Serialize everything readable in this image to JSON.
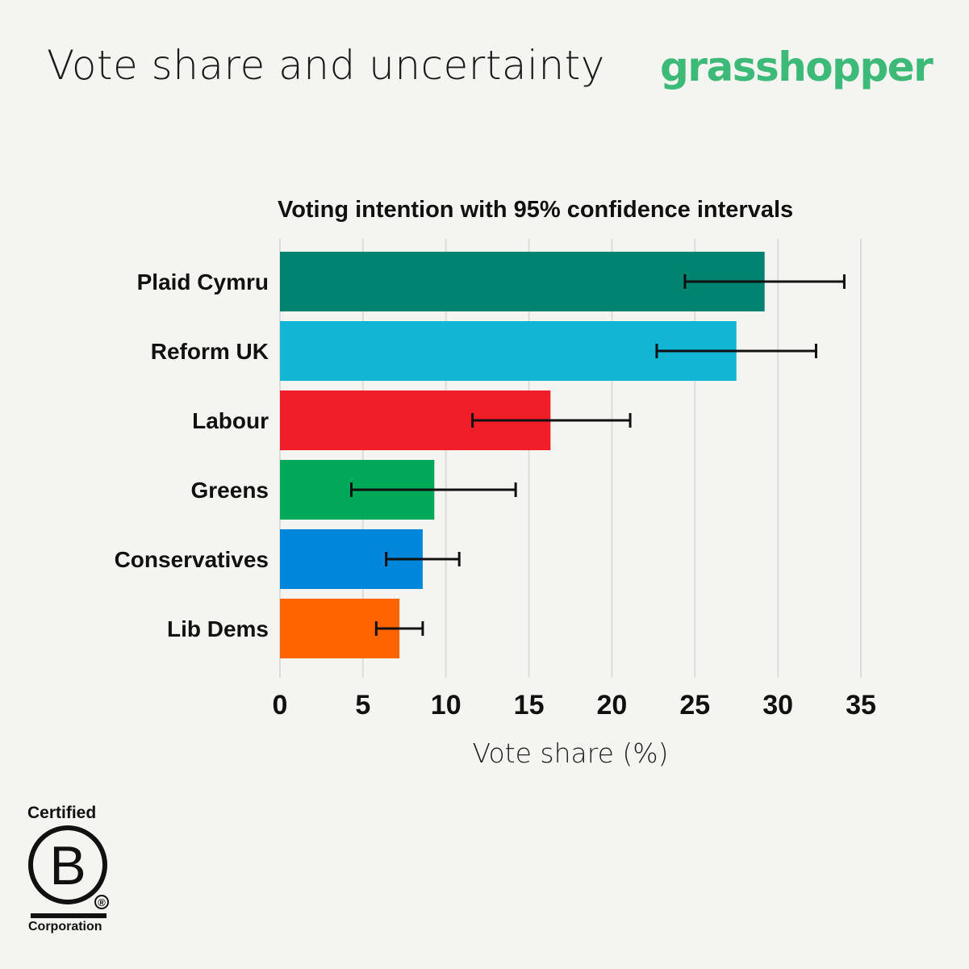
{
  "header": {
    "title": "Vote share and uncertainty",
    "brand": "grasshopper"
  },
  "colors": {
    "brand": "#3dba78",
    "background": "#f4f4f1",
    "grid": "#dcdcdc"
  },
  "chart_data": {
    "type": "bar",
    "orientation": "horizontal",
    "title": "Voting intention with 95% confidence intervals",
    "xlabel": "Vote share (%)",
    "ylabel": "",
    "xlim": [
      0,
      35
    ],
    "xticks": [
      0,
      5,
      10,
      15,
      20,
      25,
      30,
      35
    ],
    "grid": true,
    "categories": [
      "Plaid Cymru",
      "Reform UK",
      "Labour",
      "Greens",
      "Conservatives",
      "Lib Dems"
    ],
    "values": [
      29.2,
      27.5,
      16.3,
      9.3,
      8.6,
      7.2
    ],
    "ci_low": [
      24.4,
      22.7,
      11.6,
      4.3,
      6.4,
      5.8
    ],
    "ci_high": [
      34.0,
      32.3,
      21.1,
      14.2,
      10.8,
      8.6
    ],
    "colors": [
      "#008470",
      "#12b6d4",
      "#ee1f29",
      "#00a85a",
      "#0087db",
      "#ff6400"
    ]
  },
  "footer": {
    "certified_label": "Certified",
    "b_letter": "B",
    "registered_mark": "®",
    "corporation_label": "Corporation"
  }
}
